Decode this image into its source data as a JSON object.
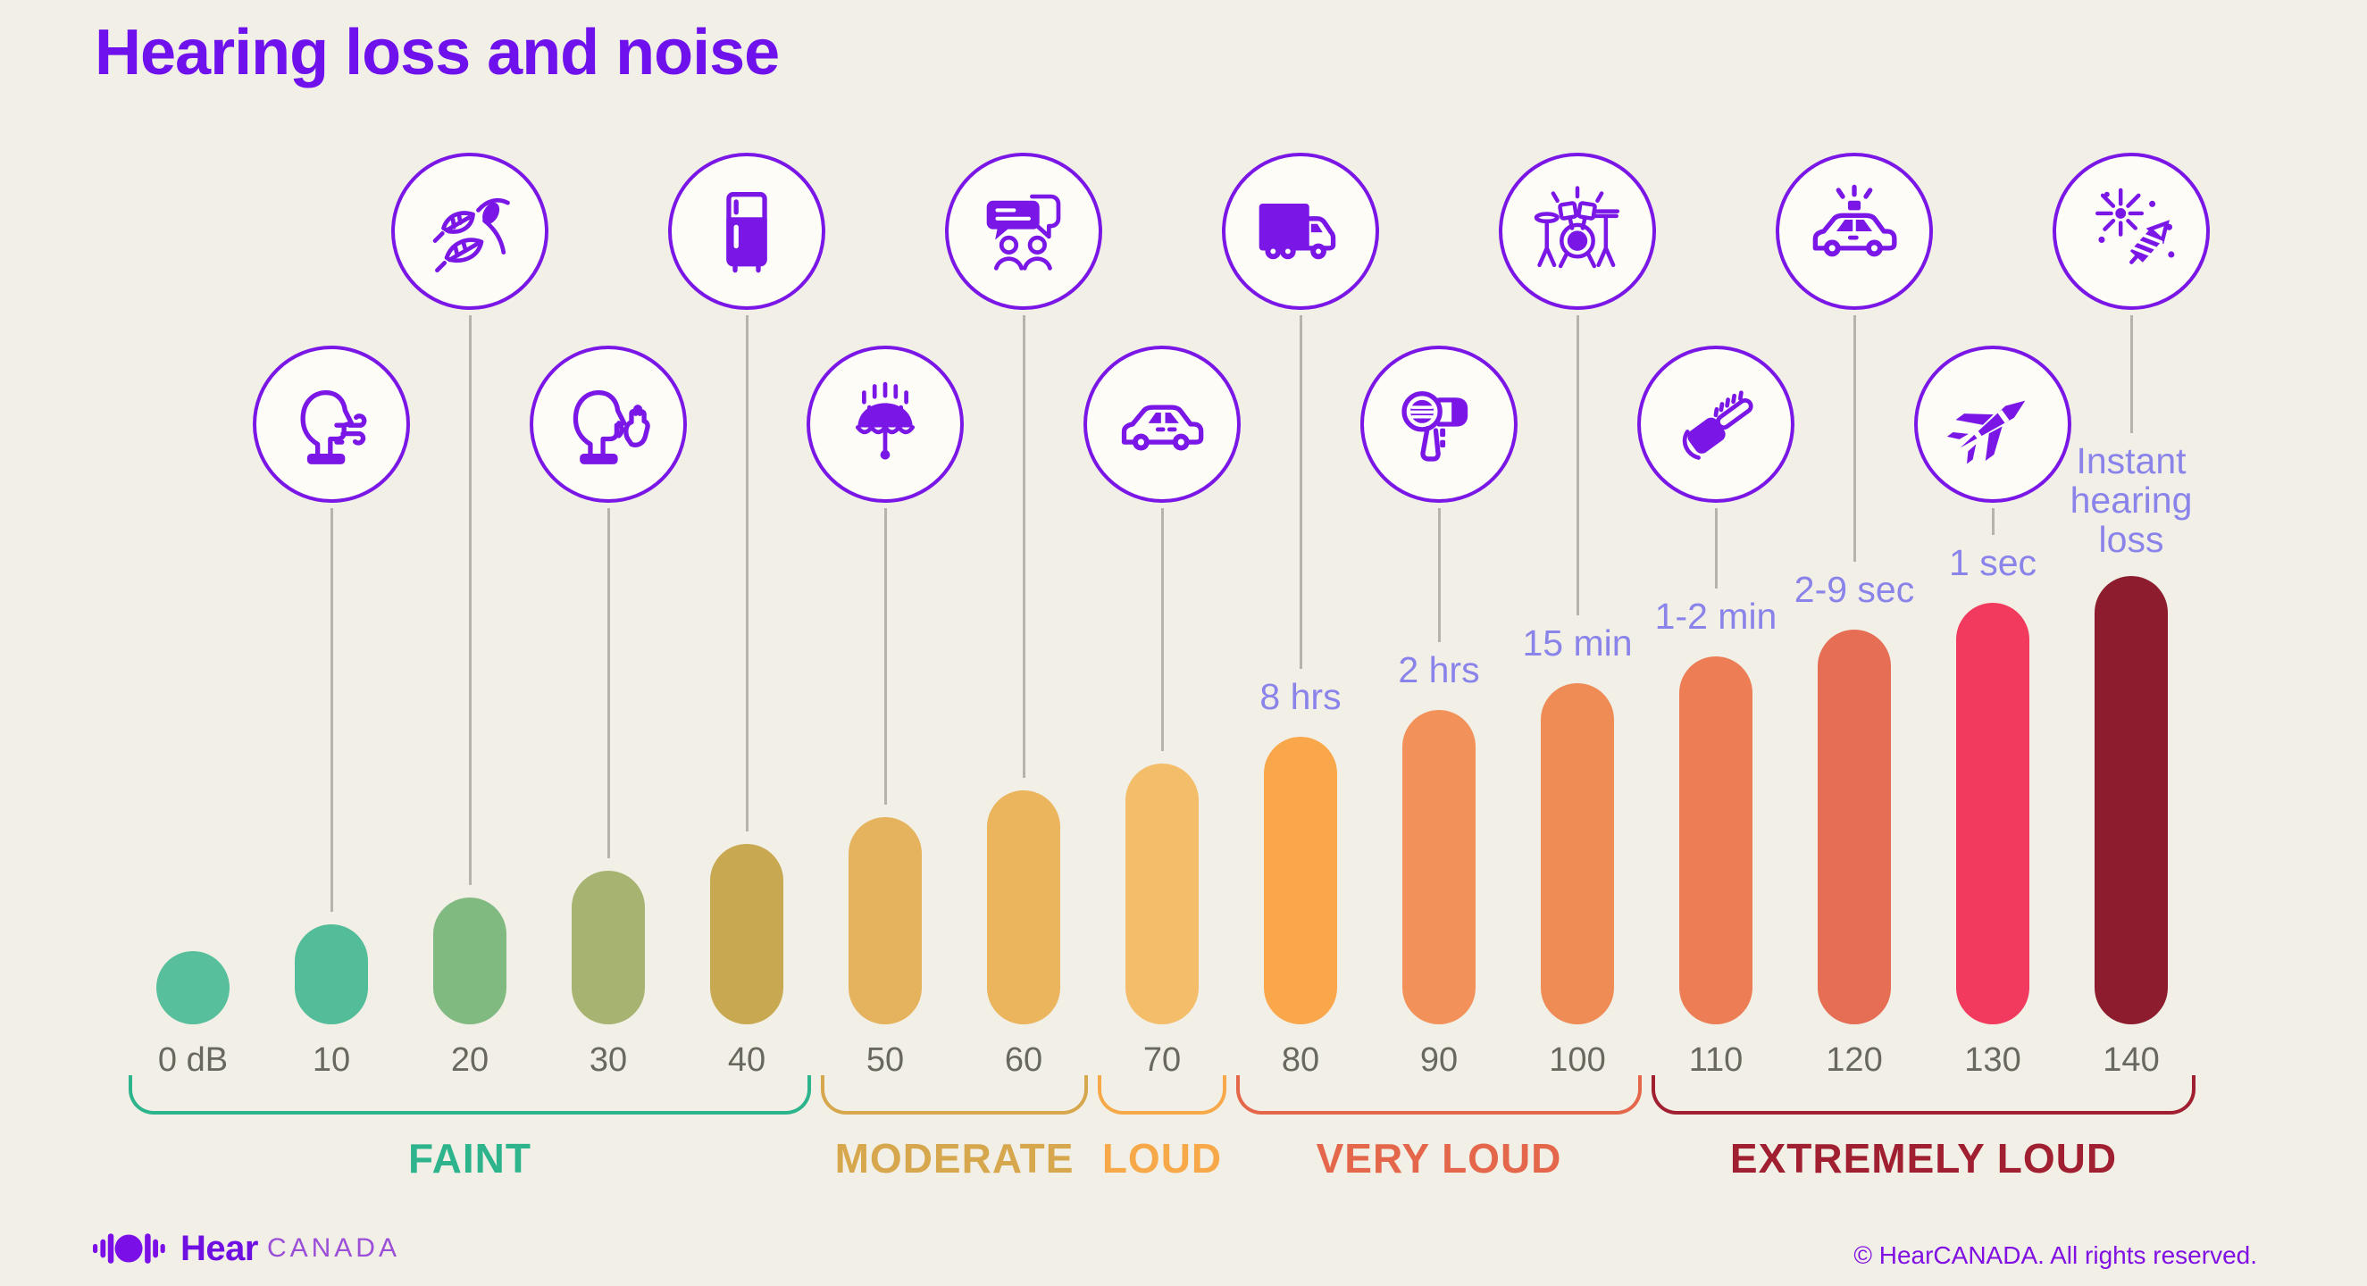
{
  "title": "Hearing loss and noise",
  "chart_data": {
    "type": "bar",
    "title": "Hearing loss and noise",
    "unit": "dB",
    "grid": false,
    "legend_position": "none",
    "categories": [
      "0 dB",
      "10",
      "20",
      "30",
      "40",
      "50",
      "60",
      "70",
      "80",
      "90",
      "100",
      "110",
      "120",
      "130",
      "140"
    ],
    "values": [
      0,
      10,
      20,
      30,
      40,
      50,
      60,
      70,
      80,
      90,
      100,
      110,
      120,
      130,
      140
    ],
    "bar_colors": [
      "#58bf9d",
      "#53bd99",
      "#80ba81",
      "#a7b471",
      "#c8a851",
      "#e5b25d",
      "#eab55c",
      "#f3bd6a",
      "#f9a74a",
      "#f2925a",
      "#ef8b55",
      "#ec7d55",
      "#e66e55",
      "#f13a5e",
      "#8d1d2e"
    ],
    "safe_exposure_labels": [
      {
        "db": 80,
        "label": "8 hrs"
      },
      {
        "db": 90,
        "label": "2 hrs"
      },
      {
        "db": 100,
        "label": "15 min"
      },
      {
        "db": 110,
        "label": "1-2 min"
      },
      {
        "db": 120,
        "label": "2-9 sec"
      },
      {
        "db": 130,
        "label": "1 sec"
      },
      {
        "db": 140,
        "label": "Instant hearing loss"
      }
    ],
    "sound_source_icons": [
      {
        "db": 10,
        "icon": "breathing-person-icon",
        "row": "lower"
      },
      {
        "db": 20,
        "icon": "rustling-leaves-icon",
        "row": "upper"
      },
      {
        "db": 30,
        "icon": "whispering-person-icon",
        "row": "lower"
      },
      {
        "db": 40,
        "icon": "refrigerator-icon",
        "row": "upper"
      },
      {
        "db": 50,
        "icon": "rainfall-umbrella-icon",
        "row": "lower"
      },
      {
        "db": 60,
        "icon": "conversation-icon",
        "row": "upper"
      },
      {
        "db": 70,
        "icon": "car-icon",
        "row": "lower"
      },
      {
        "db": 80,
        "icon": "truck-icon",
        "row": "upper"
      },
      {
        "db": 90,
        "icon": "hair-dryer-icon",
        "row": "lower"
      },
      {
        "db": 100,
        "icon": "drum-kit-icon",
        "row": "upper"
      },
      {
        "db": 110,
        "icon": "chainsaw-icon",
        "row": "lower"
      },
      {
        "db": 120,
        "icon": "police-car-icon",
        "row": "upper"
      },
      {
        "db": 130,
        "icon": "fighter-jet-icon",
        "row": "lower"
      },
      {
        "db": 140,
        "icon": "fireworks-icon",
        "row": "upper"
      }
    ],
    "loudness_ranges": [
      {
        "label": "FAINT",
        "from_db": 0,
        "to_db": 40,
        "color": "#2eb48c"
      },
      {
        "label": "MODERATE",
        "from_db": 50,
        "to_db": 60,
        "color": "#d7a74d"
      },
      {
        "label": "LOUD",
        "from_db": 70,
        "to_db": 70,
        "color": "#f7a94a"
      },
      {
        "label": "VERY LOUD",
        "from_db": 80,
        "to_db": 100,
        "color": "#e4664b"
      },
      {
        "label": "EXTREMELY LOUD",
        "from_db": 110,
        "to_db": 140,
        "color": "#a01f30"
      }
    ]
  },
  "colors": {
    "background": "#f2f0e6",
    "accent_purple": "#7a17e6",
    "time_label": "#8a83ea",
    "db_label": "#68685e",
    "connector_line": "#b5b3aa"
  },
  "footer": {
    "logo_bold": "Hear",
    "logo_light": "CANADA",
    "copyright": "© HearCANADA. All rights reserved."
  }
}
